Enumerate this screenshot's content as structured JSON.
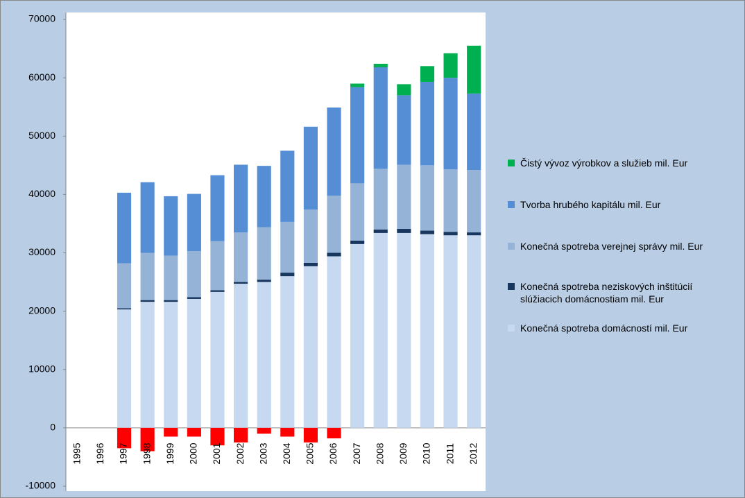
{
  "chart_data": {
    "type": "stacked_bar",
    "categories": [
      "1995",
      "1996",
      "1997",
      "1998",
      "1999",
      "2000",
      "2001",
      "2002",
      "2003",
      "2004",
      "2005",
      "2006",
      "2007",
      "2008",
      "2009",
      "2010",
      "2011",
      "2012"
    ],
    "series": [
      {
        "name": "Konečná spotreba domácností mil. Eur",
        "color": "#c6d9f1",
        "values": [
          null,
          null,
          20300,
          21600,
          21600,
          22100,
          23300,
          24700,
          25000,
          26000,
          27700,
          29400,
          31500,
          33400,
          33400,
          33200,
          33000,
          33000
        ]
      },
      {
        "name": "Konečná spotreba neziskových inštitúcií slúžiacich domácnostiam mil. Eur",
        "color": "#17375e",
        "values": [
          null,
          null,
          200,
          300,
          300,
          300,
          300,
          300,
          400,
          600,
          600,
          600,
          600,
          600,
          700,
          600,
          600,
          500
        ]
      },
      {
        "name": "Konečná spotreba verejnej správy mil. Eur",
        "color": "#95b3d7",
        "values": [
          null,
          null,
          7700,
          8100,
          7600,
          7900,
          8400,
          8500,
          9000,
          8700,
          9100,
          9800,
          9800,
          10400,
          11000,
          11200,
          10700,
          10700
        ]
      },
      {
        "name": "Tvorba hrubého kapitálu mil. Eur",
        "color": "#558ed5",
        "values": [
          null,
          null,
          12100,
          12100,
          10200,
          9800,
          11300,
          11600,
          10500,
          12200,
          14200,
          15100,
          16500,
          17400,
          11900,
          14300,
          15700,
          13100
        ]
      },
      {
        "name": "Čistý vývoz výrobkov a služieb mil. Eur",
        "color": "#00b050",
        "negative_color": "#ff0000",
        "values": [
          null,
          null,
          -3500,
          -4000,
          -1500,
          -1500,
          -3000,
          -2500,
          -1000,
          -1500,
          -2500,
          -1800,
          600,
          600,
          1900,
          2700,
          4200,
          8200
        ]
      }
    ],
    "ylim": [
      -10000,
      70000
    ],
    "yticks": [
      -10000,
      0,
      10000,
      20000,
      30000,
      40000,
      50000,
      60000,
      70000
    ],
    "legend": "right"
  }
}
